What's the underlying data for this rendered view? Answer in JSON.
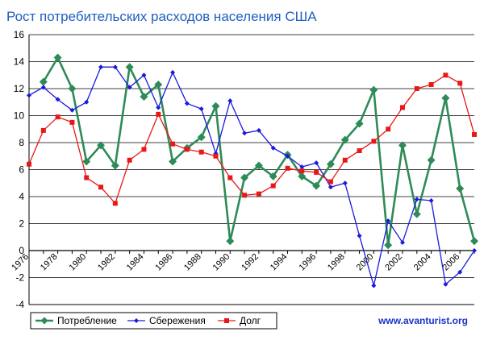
{
  "chart_data": {
    "type": "line",
    "title": "Рост потребительских расходов населения США",
    "x": [
      1976,
      1977,
      1978,
      1979,
      1980,
      1981,
      1982,
      1983,
      1984,
      1985,
      1986,
      1987,
      1988,
      1989,
      1990,
      1991,
      1992,
      1993,
      1994,
      1995,
      1996,
      1997,
      1998,
      1999,
      2000,
      2001,
      2002,
      2003,
      2004,
      2005,
      2006,
      2007
    ],
    "x_tick_labels": [
      "1976",
      "1978",
      "1980",
      "1982",
      "1984",
      "1986",
      "1988",
      "1990",
      "1992",
      "1994",
      "1996",
      "1998",
      "2000",
      "2002",
      "2004",
      "2006"
    ],
    "ylim": [
      -4,
      16
    ],
    "y_ticks": [
      "-4",
      "-2",
      "0",
      "2",
      "4",
      "6",
      "8",
      "10",
      "12",
      "14",
      "16"
    ],
    "grid": true,
    "legend_position": "bottom",
    "series": [
      {
        "name": "Потребление",
        "color": "#2e8b57",
        "marker": "diamond",
        "values": [
          null,
          12.5,
          14.3,
          12.0,
          6.6,
          7.8,
          6.3,
          13.6,
          11.4,
          12.3,
          6.6,
          7.6,
          8.4,
          10.7,
          0.7,
          5.4,
          6.3,
          5.5,
          7.1,
          5.5,
          4.8,
          6.4,
          8.2,
          9.4,
          11.9,
          0.4,
          7.8,
          2.7,
          6.7,
          11.3,
          4.6,
          0.7
        ]
      },
      {
        "name": "Сбережения",
        "color": "#1a1adf",
        "marker": "diamond",
        "values": [
          11.5,
          12.1,
          11.2,
          10.4,
          11.0,
          13.6,
          13.6,
          12.1,
          13.0,
          10.6,
          13.2,
          10.9,
          10.5,
          7.2,
          11.1,
          8.7,
          8.9,
          7.6,
          7.0,
          6.2,
          6.5,
          4.7,
          5.0,
          1.1,
          -2.6,
          2.2,
          0.6,
          3.8,
          3.7,
          -2.5,
          -1.6,
          0.0
        ]
      },
      {
        "name": "Долг",
        "color": "#e81818",
        "marker": "square",
        "values": [
          6.4,
          8.9,
          9.9,
          9.5,
          5.4,
          4.7,
          3.5,
          6.7,
          7.5,
          10.1,
          7.9,
          7.5,
          7.3,
          7.0,
          5.4,
          4.1,
          4.2,
          4.8,
          6.1,
          5.9,
          5.8,
          5.1,
          6.7,
          7.4,
          8.1,
          9.0,
          10.6,
          12.0,
          12.3,
          13.0,
          12.4,
          8.6
        ]
      }
    ]
  },
  "watermark": "www.avanturist.org"
}
